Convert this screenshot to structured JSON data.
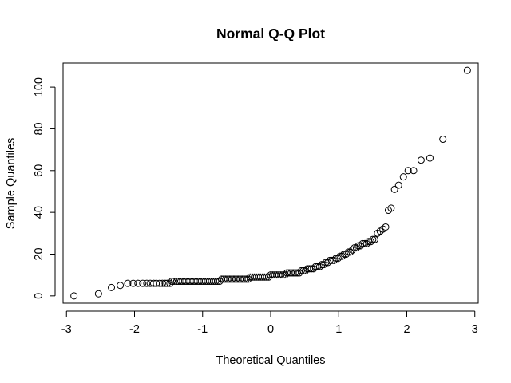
{
  "chart_data": {
    "type": "scatter",
    "title": "Normal Q-Q Plot",
    "xlabel": "Theoretical Quantiles",
    "ylabel": "Sample Quantiles",
    "xlim": [
      -3.05,
      3.05
    ],
    "ylim": [
      -3.5,
      111.5
    ],
    "x_ticks": [
      -3,
      -2,
      -1,
      0,
      1,
      2,
      3
    ],
    "x_tick_labels": [
      "-3",
      "-2",
      "-1",
      "0",
      "1",
      "2",
      "3"
    ],
    "y_ticks": [
      0,
      20,
      40,
      60,
      80,
      100
    ],
    "y_tick_labels": [
      "0",
      "20",
      "40",
      "60",
      "80",
      "100"
    ],
    "grid": false,
    "legend": "none",
    "points": [
      [
        -2.89,
        0
      ],
      [
        -2.53,
        1
      ],
      [
        -2.34,
        4
      ],
      [
        -2.21,
        5
      ],
      [
        -2.1,
        6
      ],
      [
        -2.02,
        6
      ],
      [
        -1.95,
        6
      ],
      [
        -1.88,
        6
      ],
      [
        -1.82,
        6
      ],
      [
        -1.77,
        6
      ],
      [
        -1.72,
        6
      ],
      [
        -1.68,
        6
      ],
      [
        -1.63,
        6
      ],
      [
        -1.59,
        6
      ],
      [
        -1.55,
        6
      ],
      [
        -1.52,
        6
      ],
      [
        -1.48,
        6
      ],
      [
        -1.45,
        7
      ],
      [
        -1.42,
        7
      ],
      [
        -1.38,
        7
      ],
      [
        -1.35,
        7
      ],
      [
        -1.32,
        7
      ],
      [
        -1.29,
        7
      ],
      [
        -1.26,
        7
      ],
      [
        -1.23,
        7
      ],
      [
        -1.2,
        7
      ],
      [
        -1.17,
        7
      ],
      [
        -1.14,
        7
      ],
      [
        -1.11,
        7
      ],
      [
        -1.08,
        7
      ],
      [
        -1.05,
        7
      ],
      [
        -1.02,
        7
      ],
      [
        -0.99,
        7
      ],
      [
        -0.96,
        7
      ],
      [
        -0.93,
        7
      ],
      [
        -0.9,
        7
      ],
      [
        -0.87,
        7
      ],
      [
        -0.84,
        7
      ],
      [
        -0.81,
        7
      ],
      [
        -0.78,
        7
      ],
      [
        -0.75,
        7
      ],
      [
        -0.72,
        8
      ],
      [
        -0.69,
        8
      ],
      [
        -0.66,
        8
      ],
      [
        -0.63,
        8
      ],
      [
        -0.6,
        8
      ],
      [
        -0.57,
        8
      ],
      [
        -0.54,
        8
      ],
      [
        -0.51,
        8
      ],
      [
        -0.48,
        8
      ],
      [
        -0.45,
        8
      ],
      [
        -0.42,
        8
      ],
      [
        -0.39,
        8
      ],
      [
        -0.36,
        8
      ],
      [
        -0.33,
        8
      ],
      [
        -0.3,
        9
      ],
      [
        -0.27,
        9
      ],
      [
        -0.24,
        9
      ],
      [
        -0.21,
        9
      ],
      [
        -0.18,
        9
      ],
      [
        -0.15,
        9
      ],
      [
        -0.12,
        9
      ],
      [
        -0.09,
        9
      ],
      [
        -0.06,
        9
      ],
      [
        -0.03,
        9
      ],
      [
        0,
        10
      ],
      [
        0.03,
        10
      ],
      [
        0.06,
        10
      ],
      [
        0.09,
        10
      ],
      [
        0.12,
        10
      ],
      [
        0.15,
        10
      ],
      [
        0.18,
        10
      ],
      [
        0.21,
        10
      ],
      [
        0.24,
        11
      ],
      [
        0.27,
        11
      ],
      [
        0.3,
        11
      ],
      [
        0.33,
        11
      ],
      [
        0.36,
        11
      ],
      [
        0.39,
        11
      ],
      [
        0.42,
        11
      ],
      [
        0.45,
        12
      ],
      [
        0.48,
        12
      ],
      [
        0.51,
        12
      ],
      [
        0.54,
        13
      ],
      [
        0.57,
        13
      ],
      [
        0.6,
        13
      ],
      [
        0.63,
        13
      ],
      [
        0.66,
        14
      ],
      [
        0.69,
        14
      ],
      [
        0.72,
        14
      ],
      [
        0.75,
        15
      ],
      [
        0.78,
        15
      ],
      [
        0.81,
        16
      ],
      [
        0.84,
        16
      ],
      [
        0.87,
        17
      ],
      [
        0.9,
        17
      ],
      [
        0.93,
        17
      ],
      [
        0.96,
        18
      ],
      [
        0.99,
        18
      ],
      [
        1.02,
        19
      ],
      [
        1.05,
        19
      ],
      [
        1.08,
        20
      ],
      [
        1.11,
        20
      ],
      [
        1.14,
        21
      ],
      [
        1.17,
        21
      ],
      [
        1.2,
        22
      ],
      [
        1.23,
        23
      ],
      [
        1.26,
        23
      ],
      [
        1.29,
        24
      ],
      [
        1.32,
        24
      ],
      [
        1.35,
        25
      ],
      [
        1.38,
        25
      ],
      [
        1.41,
        25
      ],
      [
        1.44,
        26
      ],
      [
        1.47,
        26
      ],
      [
        1.5,
        27
      ],
      [
        1.53,
        27
      ],
      [
        1.57,
        30
      ],
      [
        1.61,
        31
      ],
      [
        1.65,
        32
      ],
      [
        1.69,
        33
      ],
      [
        1.73,
        41
      ],
      [
        1.77,
        42
      ],
      [
        1.82,
        51
      ],
      [
        1.88,
        53
      ],
      [
        1.95,
        57
      ],
      [
        2.02,
        60
      ],
      [
        2.1,
        60
      ],
      [
        2.21,
        65
      ],
      [
        2.34,
        66
      ],
      [
        2.53,
        75
      ],
      [
        2.89,
        108
      ]
    ]
  }
}
